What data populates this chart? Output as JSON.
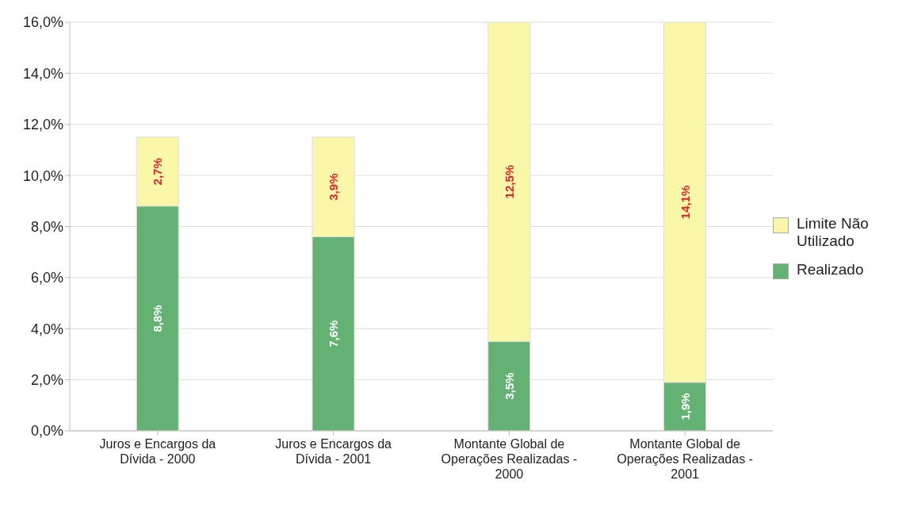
{
  "chart_data": {
    "type": "bar",
    "stacked": true,
    "categories": [
      "Juros e Encargos da Dívida - 2000",
      "Juros e Encargos da Dívida - 2001",
      "Montante Global de Operações Realizadas - 2000",
      "Montante Global de Operações Realizadas - 2001"
    ],
    "series": [
      {
        "name": "Realizado",
        "color": "#63b274",
        "values": [
          8.8,
          7.6,
          3.5,
          1.9
        ],
        "value_labels": [
          "8,8%",
          "7,6%",
          "3,5%",
          "1,9%"
        ]
      },
      {
        "name": "Limite Não Utilizado",
        "color": "#fbf7a8",
        "values": [
          2.7,
          3.9,
          12.5,
          14.1
        ],
        "value_labels": [
          "2,7%",
          "3,9%",
          "12,5%",
          "14,1%"
        ]
      }
    ],
    "ylim": [
      0,
      16
    ],
    "yticks": [
      {
        "value": 0,
        "label": "0,0%"
      },
      {
        "value": 2,
        "label": "2,0%"
      },
      {
        "value": 4,
        "label": "4,0%"
      },
      {
        "value": 6,
        "label": "6,0%"
      },
      {
        "value": 8,
        "label": "8,0%"
      },
      {
        "value": 10,
        "label": "10,0%"
      },
      {
        "value": 12,
        "label": "12,0%"
      },
      {
        "value": 14,
        "label": "14,0%"
      },
      {
        "value": 16,
        "label": "16,0%"
      }
    ],
    "grid": "y",
    "legend": "right"
  }
}
